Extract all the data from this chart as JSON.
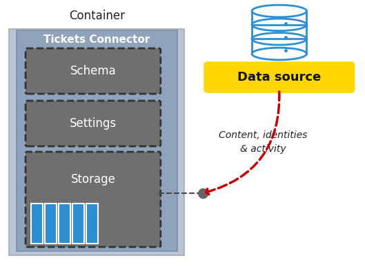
{
  "container_label": "Container",
  "connector_label": "Tickets Connector",
  "boxes": [
    "Schema",
    "Settings",
    "Storage"
  ],
  "data_source_label": "Data source",
  "arrow_label": "Content, identities\n& activity",
  "colors": {
    "container_bg": "#b8c5d8",
    "connector_bg": "#8fa3bc",
    "box_bg": "#706f6f",
    "box_border": "#333333",
    "data_source_bg": "#ffd700",
    "db_icon_color": "#2b8fd4",
    "storage_bars_fill": "#2b8fd4",
    "storage_bars_border": "#ffffff",
    "arrow_color": "#cc0000",
    "connector_dot": "#666666",
    "text_white": "#ffffff",
    "text_black": "#111111",
    "text_dark": "#222222",
    "bg": "#ffffff"
  },
  "figsize": [
    5.29,
    4.0
  ],
  "dpi": 100
}
